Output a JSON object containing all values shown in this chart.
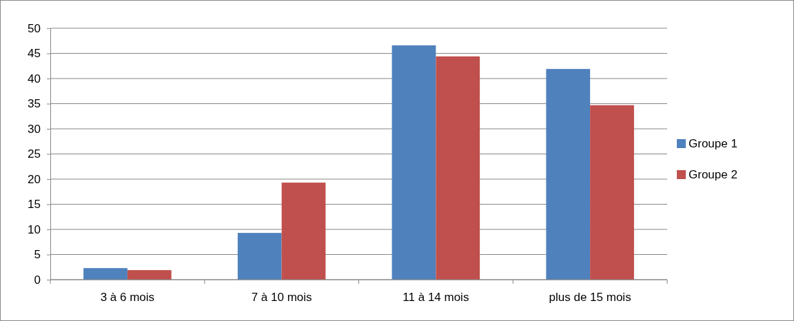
{
  "chart_data": {
    "type": "bar",
    "categories": [
      "3 à 6 mois",
      "7 à 10 mois",
      "11 à 14 mois",
      "plus de 15 mois"
    ],
    "series": [
      {
        "name": "Groupe 1",
        "color": "#4f81bd",
        "values": [
          2.3,
          9.3,
          46.6,
          41.9
        ]
      },
      {
        "name": "Groupe 2",
        "color": "#c0504d",
        "values": [
          1.9,
          19.3,
          44.4,
          34.7
        ]
      }
    ],
    "ylim": [
      0,
      50
    ],
    "yticks": [
      0,
      5,
      10,
      15,
      20,
      25,
      30,
      35,
      40,
      45,
      50
    ],
    "grid": "y",
    "legend": "right"
  }
}
